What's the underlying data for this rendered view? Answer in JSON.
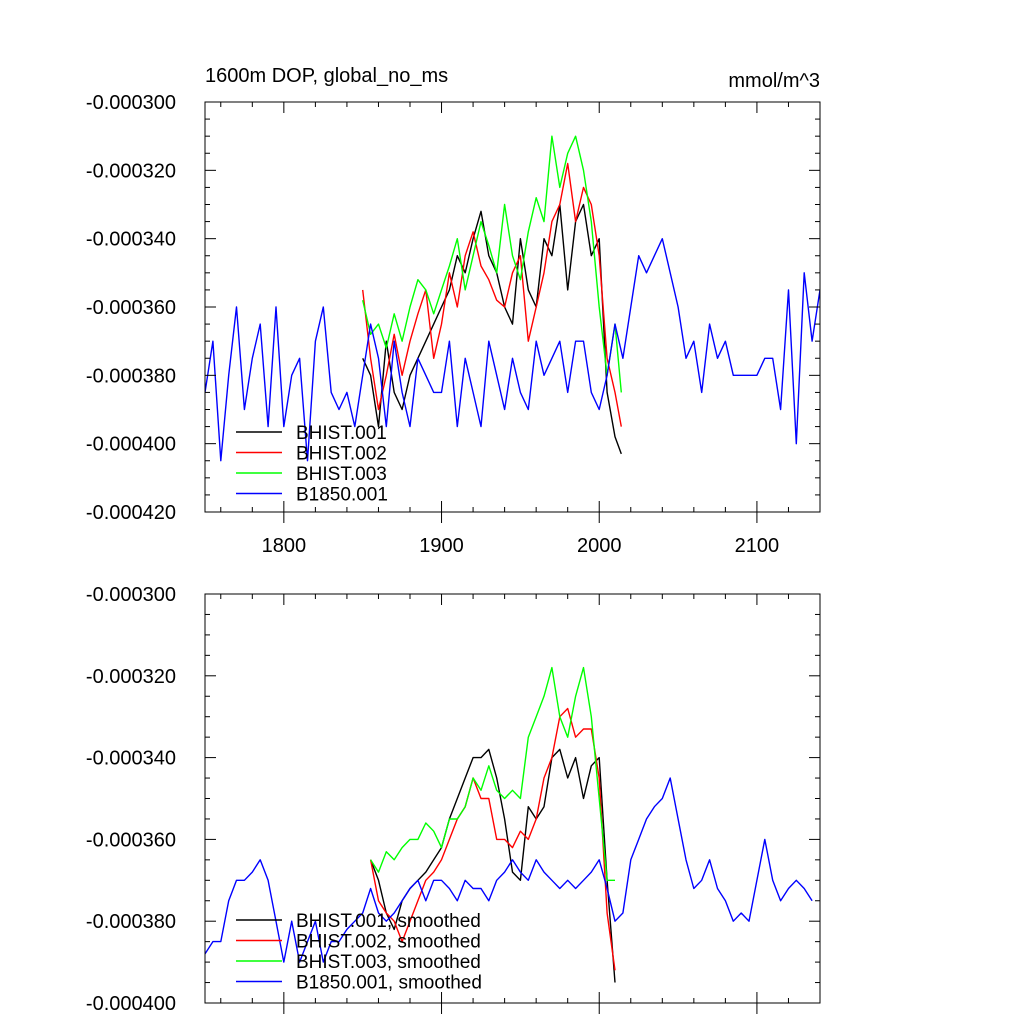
{
  "chart_data": [
    {
      "type": "line",
      "title": "1600m DOP, global_no_ms",
      "units": "mmol/m^3",
      "xlim": [
        1750,
        2140
      ],
      "ylim": [
        -0.00042,
        -0.0003
      ],
      "x_ticks": [
        1800,
        1900,
        2000,
        2100
      ],
      "x_tick_labels": [
        "1800",
        "1900",
        "2000",
        "2100"
      ],
      "y_ticks": [
        -0.0003,
        -0.00032,
        -0.00034,
        -0.00036,
        -0.00038,
        -0.0004,
        -0.00042
      ],
      "y_tick_labels": [
        "-0.000300",
        "-0.000320",
        "-0.000340",
        "-0.000360",
        "-0.000380",
        "-0.000400",
        "-0.000420"
      ],
      "legend_position": "bottom-left",
      "series": [
        {
          "name": "BHIST.001",
          "color": "#000000",
          "x": [
            1850,
            1855,
            1860,
            1865,
            1870,
            1875,
            1880,
            1885,
            1890,
            1895,
            1900,
            1905,
            1910,
            1915,
            1920,
            1925,
            1930,
            1935,
            1940,
            1945,
            1950,
            1955,
            1960,
            1965,
            1970,
            1975,
            1980,
            1985,
            1990,
            1995,
            2000,
            2005,
            2010,
            2014
          ],
          "y": [
            -0.000375,
            -0.00038,
            -0.000395,
            -0.00037,
            -0.000385,
            -0.00039,
            -0.00038,
            -0.000375,
            -0.00037,
            -0.000365,
            -0.00036,
            -0.000355,
            -0.000345,
            -0.00035,
            -0.00034,
            -0.000332,
            -0.000345,
            -0.00035,
            -0.00036,
            -0.000365,
            -0.00034,
            -0.000355,
            -0.00036,
            -0.00034,
            -0.000345,
            -0.00033,
            -0.000355,
            -0.000335,
            -0.00033,
            -0.000345,
            -0.00034,
            -0.000385,
            -0.000398,
            -0.000403
          ]
        },
        {
          "name": "BHIST.002",
          "color": "#ff0000",
          "x": [
            1850,
            1855,
            1860,
            1865,
            1870,
            1875,
            1880,
            1885,
            1890,
            1895,
            1900,
            1905,
            1910,
            1915,
            1920,
            1925,
            1930,
            1935,
            1940,
            1945,
            1950,
            1955,
            1960,
            1965,
            1970,
            1975,
            1980,
            1985,
            1990,
            1995,
            2000,
            2005,
            2010,
            2014
          ],
          "y": [
            -0.000355,
            -0.000375,
            -0.00039,
            -0.00038,
            -0.000368,
            -0.00038,
            -0.00037,
            -0.000362,
            -0.000355,
            -0.000375,
            -0.000365,
            -0.00035,
            -0.00036,
            -0.000345,
            -0.000338,
            -0.000348,
            -0.000352,
            -0.000358,
            -0.00036,
            -0.00035,
            -0.000345,
            -0.00037,
            -0.00036,
            -0.00035,
            -0.000335,
            -0.00033,
            -0.000318,
            -0.000335,
            -0.000325,
            -0.00033,
            -0.000345,
            -0.000375,
            -0.000385,
            -0.000395
          ]
        },
        {
          "name": "BHIST.003",
          "color": "#00ff00",
          "x": [
            1850,
            1855,
            1860,
            1865,
            1870,
            1875,
            1880,
            1885,
            1890,
            1895,
            1900,
            1905,
            1910,
            1915,
            1920,
            1925,
            1930,
            1935,
            1940,
            1945,
            1950,
            1955,
            1960,
            1965,
            1970,
            1975,
            1980,
            1985,
            1990,
            1995,
            2000,
            2005,
            2010,
            2014
          ],
          "y": [
            -0.000358,
            -0.000368,
            -0.000365,
            -0.000372,
            -0.000362,
            -0.00037,
            -0.00036,
            -0.000352,
            -0.000355,
            -0.000362,
            -0.000355,
            -0.000348,
            -0.00034,
            -0.000355,
            -0.000345,
            -0.000335,
            -0.000342,
            -0.00035,
            -0.00033,
            -0.000345,
            -0.000352,
            -0.000338,
            -0.000328,
            -0.000335,
            -0.00031,
            -0.000325,
            -0.000315,
            -0.00031,
            -0.00032,
            -0.000335,
            -0.00036,
            -0.00038,
            -0.000365,
            -0.000385
          ]
        },
        {
          "name": "B1850.001",
          "color": "#0000ff",
          "x": [
            1750,
            1755,
            1760,
            1765,
            1770,
            1775,
            1780,
            1785,
            1790,
            1795,
            1800,
            1805,
            1810,
            1815,
            1820,
            1825,
            1830,
            1835,
            1840,
            1845,
            1850,
            1855,
            1860,
            1865,
            1870,
            1875,
            1880,
            1885,
            1890,
            1895,
            1900,
            1905,
            1910,
            1915,
            1920,
            1925,
            1930,
            1935,
            1940,
            1945,
            1950,
            1955,
            1960,
            1965,
            1970,
            1975,
            1980,
            1985,
            1990,
            1995,
            2000,
            2005,
            2010,
            2015,
            2020,
            2025,
            2030,
            2035,
            2040,
            2045,
            2050,
            2055,
            2060,
            2065,
            2070,
            2075,
            2080,
            2085,
            2090,
            2095,
            2100,
            2105,
            2110,
            2115,
            2120,
            2125,
            2130,
            2135,
            2140
          ],
          "y": [
            -0.000385,
            -0.00037,
            -0.000405,
            -0.00038,
            -0.00036,
            -0.00039,
            -0.000375,
            -0.000365,
            -0.000395,
            -0.00036,
            -0.000395,
            -0.00038,
            -0.000375,
            -0.000405,
            -0.00037,
            -0.00036,
            -0.000385,
            -0.00039,
            -0.000385,
            -0.000395,
            -0.00038,
            -0.000365,
            -0.000375,
            -0.000395,
            -0.00037,
            -0.000385,
            -0.000395,
            -0.000375,
            -0.00038,
            -0.000385,
            -0.000385,
            -0.00037,
            -0.000395,
            -0.000375,
            -0.000385,
            -0.000395,
            -0.00037,
            -0.00038,
            -0.00039,
            -0.000375,
            -0.000385,
            -0.00039,
            -0.00037,
            -0.00038,
            -0.000375,
            -0.00037,
            -0.000385,
            -0.00037,
            -0.00037,
            -0.000385,
            -0.00039,
            -0.00038,
            -0.000365,
            -0.000375,
            -0.00036,
            -0.000345,
            -0.00035,
            -0.000345,
            -0.00034,
            -0.00035,
            -0.00036,
            -0.000375,
            -0.00037,
            -0.000385,
            -0.000365,
            -0.000375,
            -0.00037,
            -0.00038,
            -0.00038,
            -0.00038,
            -0.00038,
            -0.000375,
            -0.000375,
            -0.00039,
            -0.000355,
            -0.0004,
            -0.00035,
            -0.00037,
            -0.000355
          ]
        }
      ]
    },
    {
      "type": "line",
      "xlim": [
        1750,
        2140
      ],
      "ylim": [
        -0.0004,
        -0.0003
      ],
      "x_ticks": [
        1800,
        1900,
        2000,
        2100
      ],
      "y_ticks": [
        -0.0003,
        -0.00032,
        -0.00034,
        -0.00036,
        -0.00038,
        -0.0004
      ],
      "y_tick_labels": [
        "-0.000300",
        "-0.000320",
        "-0.000340",
        "-0.000360",
        "-0.000380",
        "-0.000400"
      ],
      "legend_position": "bottom-left",
      "series": [
        {
          "name": "BHIST.001, smoothed",
          "color": "#000000",
          "x": [
            1855,
            1860,
            1865,
            1870,
            1875,
            1880,
            1885,
            1890,
            1895,
            1900,
            1905,
            1910,
            1915,
            1920,
            1925,
            1930,
            1935,
            1940,
            1945,
            1950,
            1955,
            1960,
            1965,
            1970,
            1975,
            1980,
            1985,
            1990,
            1995,
            2000,
            2005,
            2010
          ],
          "y": [
            -0.000365,
            -0.00037,
            -0.000378,
            -0.000382,
            -0.000375,
            -0.000372,
            -0.00037,
            -0.000368,
            -0.000365,
            -0.000362,
            -0.000355,
            -0.00035,
            -0.000345,
            -0.00034,
            -0.00034,
            -0.000338,
            -0.000345,
            -0.000355,
            -0.000368,
            -0.00037,
            -0.000352,
            -0.000355,
            -0.000352,
            -0.00034,
            -0.000338,
            -0.000345,
            -0.00034,
            -0.00035,
            -0.000342,
            -0.00034,
            -0.00037,
            -0.000395
          ]
        },
        {
          "name": "BHIST.002, smoothed",
          "color": "#ff0000",
          "x": [
            1855,
            1860,
            1865,
            1870,
            1875,
            1880,
            1885,
            1890,
            1895,
            1900,
            1905,
            1910,
            1915,
            1920,
            1925,
            1930,
            1935,
            1940,
            1945,
            1950,
            1955,
            1960,
            1965,
            1970,
            1975,
            1980,
            1985,
            1990,
            1995,
            2000,
            2005,
            2010
          ],
          "y": [
            -0.000365,
            -0.000375,
            -0.000378,
            -0.00038,
            -0.000385,
            -0.00038,
            -0.000375,
            -0.00037,
            -0.000368,
            -0.000365,
            -0.00036,
            -0.000355,
            -0.000352,
            -0.000345,
            -0.00035,
            -0.00035,
            -0.00036,
            -0.00036,
            -0.000362,
            -0.000358,
            -0.00036,
            -0.000355,
            -0.000345,
            -0.00034,
            -0.00033,
            -0.000328,
            -0.000335,
            -0.000333,
            -0.000333,
            -0.000345,
            -0.000378,
            -0.000392
          ]
        },
        {
          "name": "BHIST.003, smoothed",
          "color": "#00ff00",
          "x": [
            1855,
            1860,
            1865,
            1870,
            1875,
            1880,
            1885,
            1890,
            1895,
            1900,
            1905,
            1910,
            1915,
            1920,
            1925,
            1930,
            1935,
            1940,
            1945,
            1950,
            1955,
            1960,
            1965,
            1970,
            1975,
            1980,
            1985,
            1990,
            1995,
            2000,
            2005,
            2010
          ],
          "y": [
            -0.000365,
            -0.000368,
            -0.000363,
            -0.000365,
            -0.000362,
            -0.00036,
            -0.00036,
            -0.000356,
            -0.000358,
            -0.000362,
            -0.000355,
            -0.000355,
            -0.000352,
            -0.000345,
            -0.000348,
            -0.000342,
            -0.000348,
            -0.00035,
            -0.000348,
            -0.00035,
            -0.000335,
            -0.00033,
            -0.000325,
            -0.000318,
            -0.00033,
            -0.000335,
            -0.000325,
            -0.000318,
            -0.00033,
            -0.00035,
            -0.00037,
            -0.00037
          ]
        },
        {
          "name": "B1850.001, smoothed",
          "color": "#0000ff",
          "x": [
            1750,
            1755,
            1760,
            1765,
            1770,
            1775,
            1780,
            1785,
            1790,
            1795,
            1800,
            1805,
            1810,
            1815,
            1820,
            1825,
            1830,
            1835,
            1840,
            1845,
            1850,
            1855,
            1860,
            1865,
            1870,
            1875,
            1880,
            1885,
            1890,
            1895,
            1900,
            1905,
            1910,
            1915,
            1920,
            1925,
            1930,
            1935,
            1940,
            1945,
            1950,
            1955,
            1960,
            1965,
            1970,
            1975,
            1980,
            1985,
            1990,
            1995,
            2000,
            2005,
            2010,
            2015,
            2020,
            2025,
            2030,
            2035,
            2040,
            2045,
            2050,
            2055,
            2060,
            2065,
            2070,
            2075,
            2080,
            2085,
            2090,
            2095,
            2100,
            2105,
            2110,
            2115,
            2120,
            2125,
            2130,
            2135
          ],
          "y": [
            -0.000388,
            -0.000385,
            -0.000385,
            -0.000375,
            -0.00037,
            -0.00037,
            -0.000368,
            -0.000365,
            -0.00037,
            -0.00038,
            -0.00039,
            -0.00038,
            -0.00039,
            -0.000385,
            -0.00038,
            -0.00039,
            -0.000385,
            -0.000385,
            -0.000382,
            -0.00038,
            -0.000378,
            -0.000372,
            -0.000378,
            -0.00038,
            -0.000378,
            -0.000375,
            -0.000372,
            -0.00037,
            -0.000375,
            -0.00037,
            -0.00037,
            -0.000372,
            -0.000375,
            -0.00037,
            -0.000372,
            -0.000372,
            -0.000375,
            -0.00037,
            -0.000368,
            -0.000365,
            -0.000368,
            -0.00037,
            -0.000365,
            -0.000368,
            -0.00037,
            -0.000372,
            -0.00037,
            -0.000372,
            -0.00037,
            -0.000368,
            -0.000365,
            -0.000372,
            -0.00038,
            -0.000378,
            -0.000365,
            -0.00036,
            -0.000355,
            -0.000352,
            -0.00035,
            -0.000345,
            -0.000355,
            -0.000365,
            -0.000372,
            -0.00037,
            -0.000365,
            -0.000372,
            -0.000375,
            -0.00038,
            -0.000378,
            -0.00038,
            -0.00037,
            -0.00036,
            -0.00037,
            -0.000375,
            -0.000372,
            -0.00037,
            -0.000372,
            -0.000375
          ]
        }
      ]
    }
  ]
}
